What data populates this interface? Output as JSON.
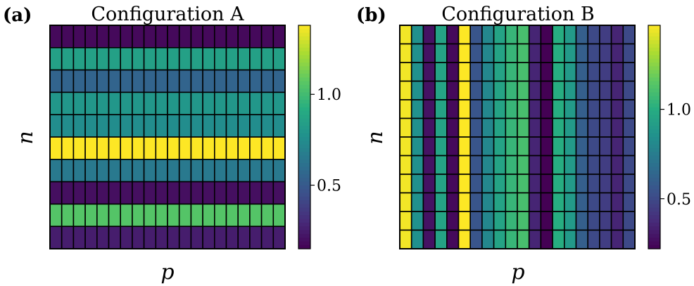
{
  "chart_data": [
    {
      "type": "heatmap",
      "panel": "(a)",
      "title": "Configuration A",
      "xlabel": "p",
      "ylabel": "n",
      "n_cols": 20,
      "row_values": [
        0.18,
        0.85,
        0.55,
        0.8,
        0.75,
        1.38,
        0.65,
        0.2,
        1.05,
        0.25
      ],
      "colorbar": {
        "min": 0.15,
        "max": 1.38,
        "ticks": [
          0.5,
          1.0
        ],
        "tick_labels": [
          "0.5",
          "1.0"
        ]
      },
      "colormap": "viridis",
      "grid": true
    },
    {
      "type": "heatmap",
      "panel": "(b)",
      "title": "Configuration B",
      "xlabel": "p",
      "ylabel": "n",
      "n_rows": 12,
      "col_values": [
        1.45,
        0.85,
        0.28,
        0.95,
        0.25,
        1.47,
        0.55,
        0.8,
        0.95,
        1.05,
        1.1,
        0.35,
        0.22,
        1.0,
        0.9,
        0.6,
        0.5,
        0.45,
        0.35,
        0.5
      ],
      "colorbar": {
        "min": 0.22,
        "max": 1.47,
        "ticks": [
          0.5,
          1.0
        ],
        "tick_labels": [
          "0.5",
          "1.0"
        ]
      },
      "colormap": "viridis",
      "grid": true
    }
  ]
}
